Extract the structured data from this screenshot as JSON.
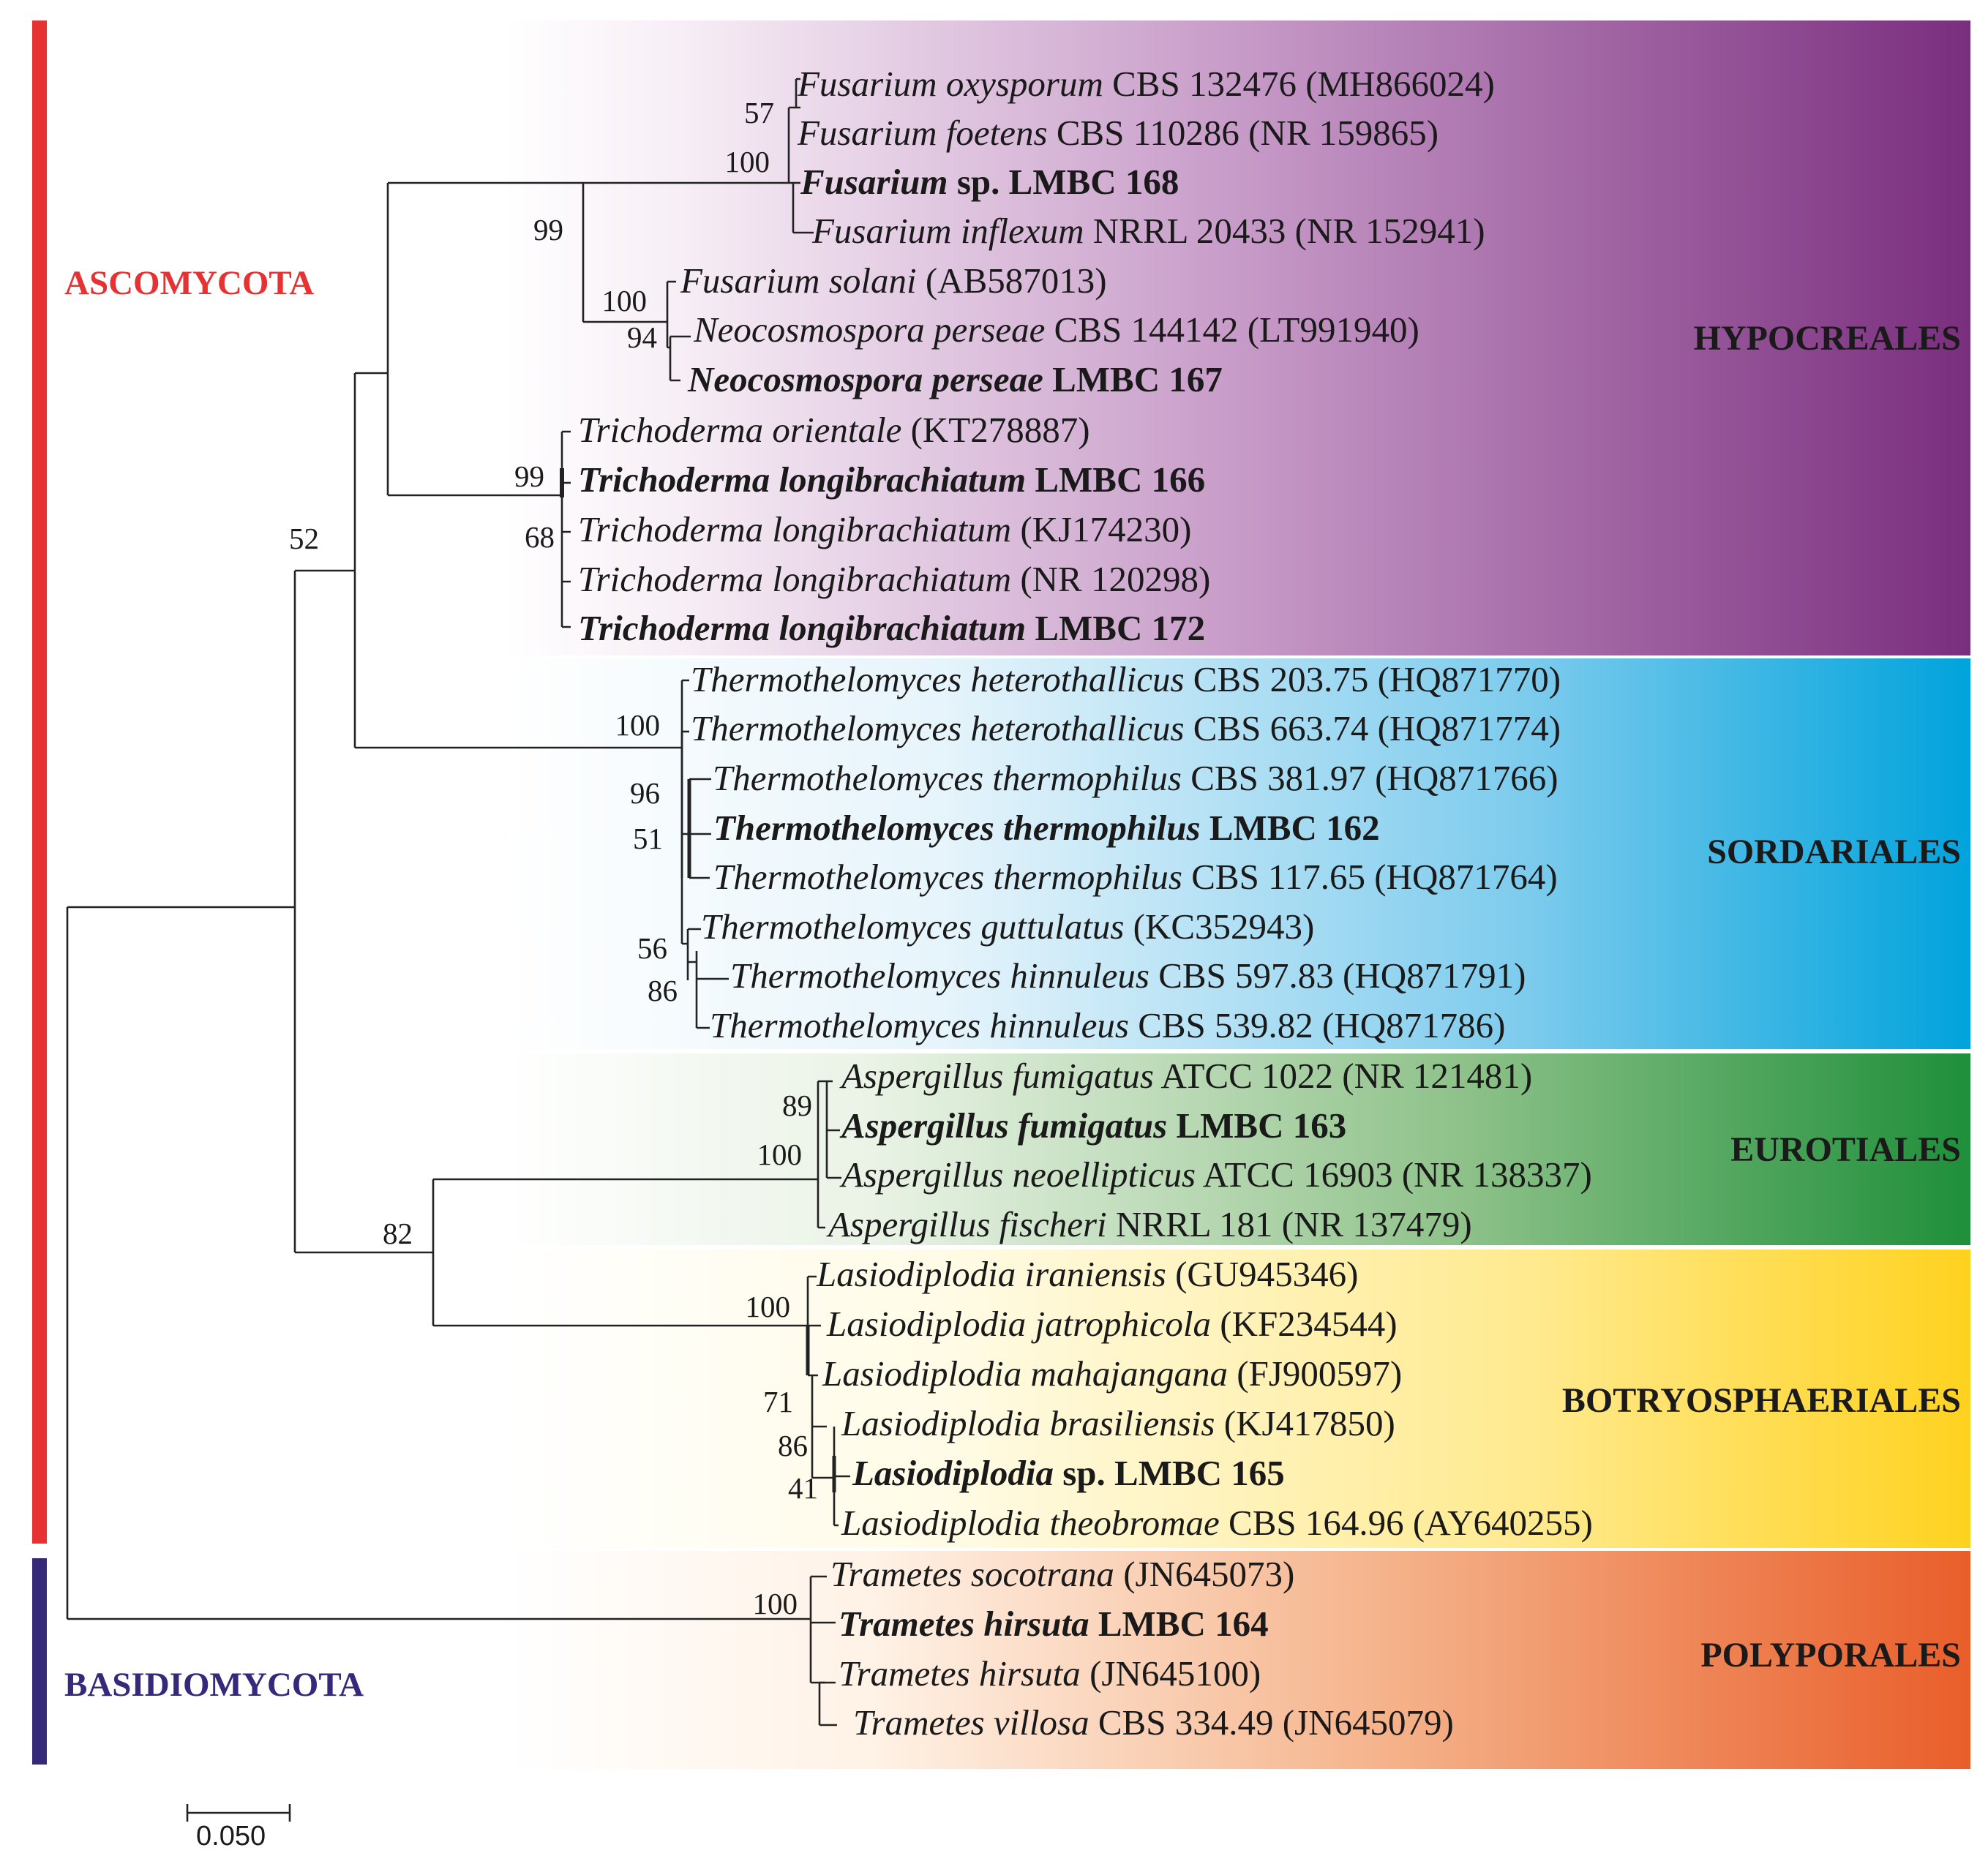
{
  "phyla": [
    {
      "name": "ASCOMYCOTA",
      "color": "#e63232"
    },
    {
      "name": "BASIDIOMYCOTA",
      "color": "#35297a"
    }
  ],
  "orders": [
    {
      "name": "HYPOCREALES",
      "color": "#7a2e7e"
    },
    {
      "name": "SORDARIALES",
      "color": "#00a3dc"
    },
    {
      "name": "EUROTIALES",
      "color": "#1f8f3a"
    },
    {
      "name": "BOTRYOSPHAERIALES",
      "color": "#ffd21f"
    },
    {
      "name": "POLYPORALES",
      "color": "#e95e2a"
    }
  ],
  "taxa": [
    {
      "italic": "Fusarium oxysporum",
      "rest": "CBS 132476 (MH866024)",
      "bold": false
    },
    {
      "italic": "Fusarium foetens",
      "rest": "CBS 110286 (NR 159865)",
      "bold": false
    },
    {
      "italic": "Fusarium",
      "rest": "sp. LMBC 168",
      "bold": true
    },
    {
      "italic": "Fusarium inflexum",
      "rest": "NRRL 20433 (NR 152941)",
      "bold": false
    },
    {
      "italic": "Fusarium solani",
      "rest": "(AB587013)",
      "bold": false
    },
    {
      "italic": "Neocosmospora perseae",
      "rest": "CBS 144142 (LT991940)",
      "bold": false
    },
    {
      "italic": "Neocosmospora perseae",
      "rest": "LMBC 167",
      "bold": true
    },
    {
      "italic": "Trichoderma orientale",
      "rest": "(KT278887)",
      "bold": false
    },
    {
      "italic": "Trichoderma longibrachiatum",
      "rest": "LMBC 166",
      "bold": true
    },
    {
      "italic": "Trichoderma longibrachiatum",
      "rest": "(KJ174230)",
      "bold": false
    },
    {
      "italic": "Trichoderma longibrachiatum",
      "rest": "(NR 120298)",
      "bold": false
    },
    {
      "italic": "Trichoderma longibrachiatum",
      "rest": "LMBC 172",
      "bold": true
    },
    {
      "italic": "Thermothelomyces heterothallicus",
      "rest": "CBS 203.75 (HQ871770)",
      "bold": false
    },
    {
      "italic": "Thermothelomyces heterothallicus",
      "rest": "CBS 663.74 (HQ871774)",
      "bold": false
    },
    {
      "italic": "Thermothelomyces thermophilus",
      "rest": "CBS 381.97 (HQ871766)",
      "bold": false
    },
    {
      "italic": "Thermothelomyces thermophilus",
      "rest": "LMBC 162",
      "bold": true
    },
    {
      "italic": "Thermothelomyces thermophilus",
      "rest": "CBS 117.65 (HQ871764)",
      "bold": false
    },
    {
      "italic": "Thermothelomyces guttulatus",
      "rest": "(KC352943)",
      "bold": false
    },
    {
      "italic": "Thermothelomyces hinnuleus",
      "rest": "CBS 597.83 (HQ871791)",
      "bold": false
    },
    {
      "italic": "Thermothelomyces hinnuleus",
      "rest": "CBS 539.82 (HQ871786)",
      "bold": false
    },
    {
      "italic": "Aspergillus fumigatus",
      "rest": "ATCC 1022 (NR 121481)",
      "bold": false
    },
    {
      "italic": "Aspergillus fumigatus",
      "rest": "LMBC 163",
      "bold": true
    },
    {
      "italic": "Aspergillus neoellipticus",
      "rest": "ATCC 16903 (NR 138337)",
      "bold": false
    },
    {
      "italic": "Aspergillus fischeri",
      "rest": "NRRL 181 (NR 137479)",
      "bold": false
    },
    {
      "italic": "Lasiodiplodia iraniensis",
      "rest": "(GU945346)",
      "bold": false
    },
    {
      "italic": "Lasiodiplodia jatrophicola",
      "rest": "(KF234544)",
      "bold": false
    },
    {
      "italic": "Lasiodiplodia mahajangana",
      "rest": "(FJ900597)",
      "bold": false
    },
    {
      "italic": "Lasiodiplodia brasiliensis",
      "rest": "(KJ417850)",
      "bold": false
    },
    {
      "italic": "Lasiodiplodia",
      "rest": "sp. LMBC 165",
      "bold": true
    },
    {
      "italic": "Lasiodiplodia theobromae",
      "rest": "CBS 164.96 (AY640255)",
      "bold": false
    },
    {
      "italic": "Trametes socotrana",
      "rest": "(JN645073)",
      "bold": false
    },
    {
      "italic": "Trametes hirsuta",
      "rest": "LMBC 164",
      "bold": true
    },
    {
      "italic": "Trametes hirsuta",
      "rest": "(JN645100)",
      "bold": false
    },
    {
      "italic": "Trametes villosa",
      "rest": "CBS 334.49 (JN645079)",
      "bold": false
    }
  ],
  "bootstrap": [
    "57",
    "100",
    "99",
    "100",
    "94",
    "99",
    "68",
    "52",
    "100",
    "96",
    "51",
    "56",
    "86",
    "89",
    "100",
    "82",
    "100",
    "71",
    "86",
    "41",
    "100"
  ],
  "scale_bar": {
    "label": "0.050",
    "value": 0.05
  }
}
